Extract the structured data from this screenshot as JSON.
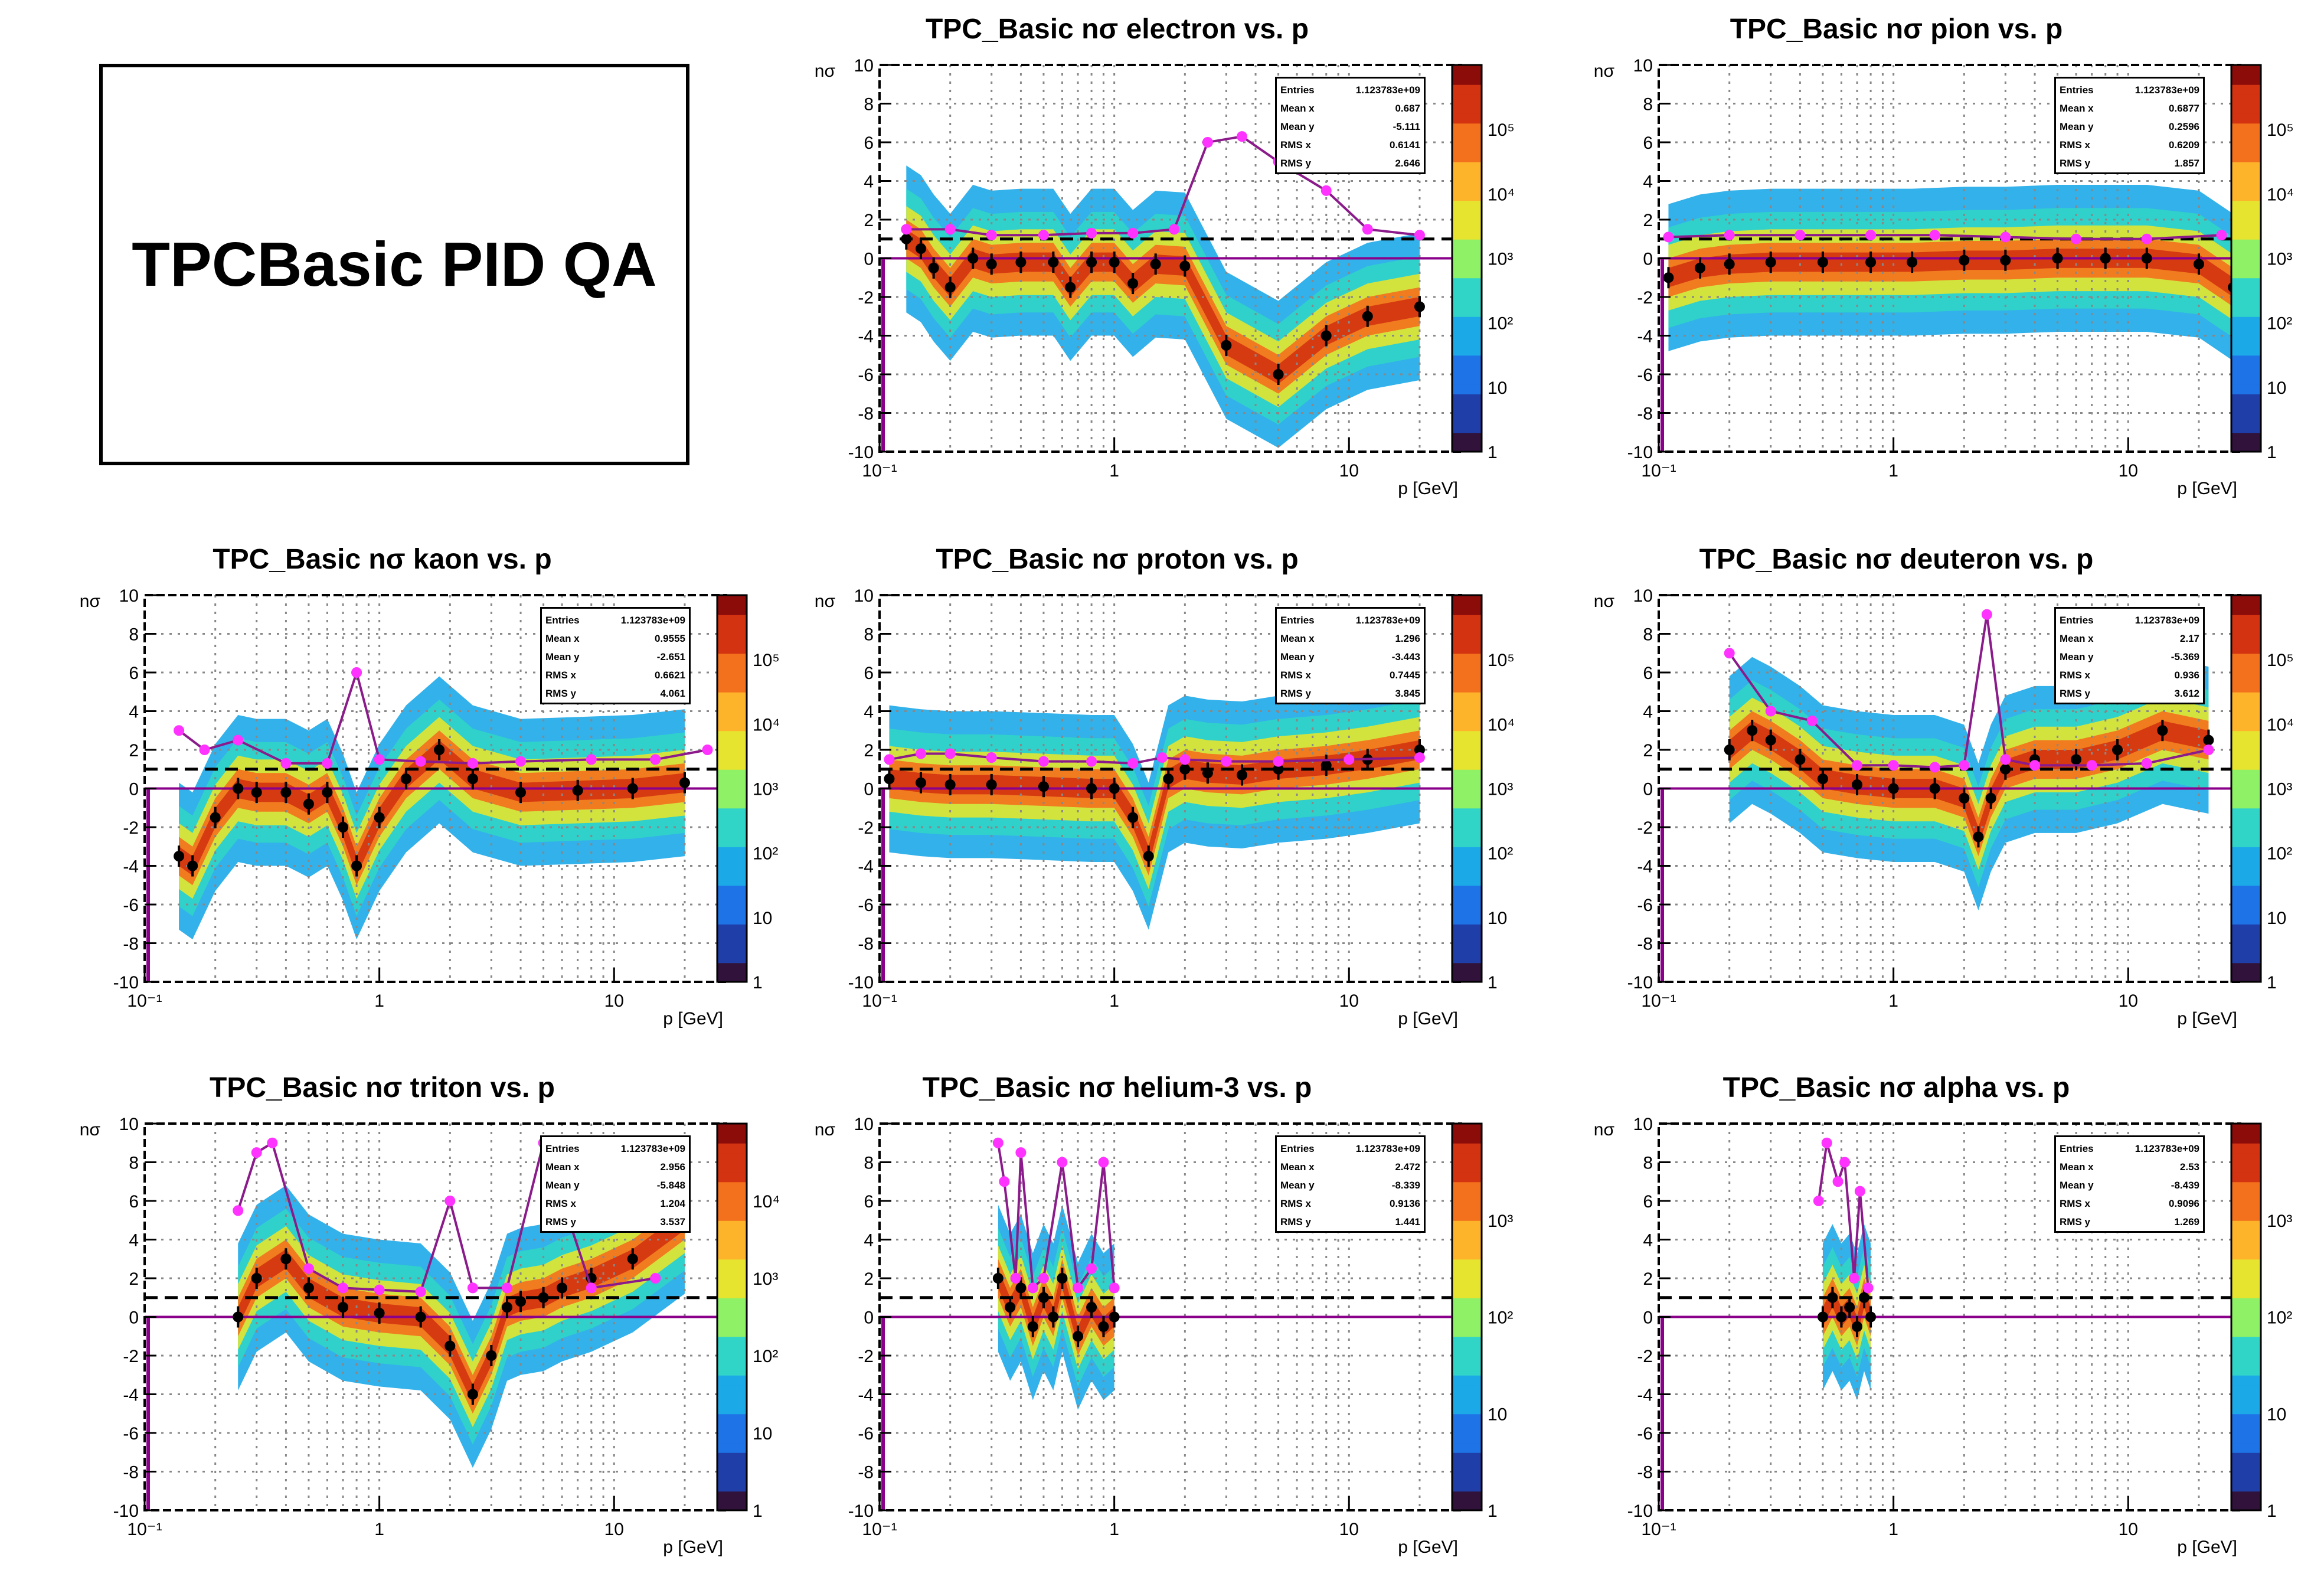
{
  "page_title": "TPCBasic PID QA",
  "colors": {
    "mean_marker": "#000000",
    "sigma_marker": "#ff33ff",
    "distribution_line": "#8b1a8b",
    "reference_dashed": "#000000",
    "zero_line": "#8b008b"
  },
  "chart_data": [
    {
      "type": "heatmap",
      "title": "TPC_Basic nσ electron vs. p",
      "species": "electron",
      "ylabel": "nσ",
      "xlabel": "p [GeV]",
      "xscale": "log",
      "xlim": [
        0.1,
        30
      ],
      "ylim": [
        -10,
        10
      ],
      "zscale": "log",
      "zlim": [
        1,
        1000000
      ],
      "zticks": [
        "1",
        "10",
        "10²",
        "10³",
        "10⁴",
        "10⁵"
      ],
      "xticks": [
        "10⁻¹",
        "1",
        "10"
      ],
      "yticks": [
        "-10",
        "-8",
        "-6",
        "-4",
        "-2",
        "0",
        "2",
        "4",
        "6",
        "8",
        "10"
      ],
      "stats": {
        "entries": "1.123783e+09",
        "mean_x": "0.687",
        "mean_y": "-5.111",
        "rms_x": "0.6141",
        "rms_y": "2.646"
      },
      "mean_profile": {
        "x": [
          0.13,
          0.15,
          0.17,
          0.2,
          0.25,
          0.3,
          0.4,
          0.55,
          0.65,
          0.8,
          1.0,
          1.2,
          1.5,
          2.0,
          3.0,
          5.0,
          8.0,
          12.0,
          20.0
        ],
        "y": [
          1.0,
          0.5,
          -0.5,
          -1.5,
          0.0,
          -0.3,
          -0.2,
          -0.2,
          -1.5,
          -0.2,
          -0.2,
          -1.3,
          -0.3,
          -0.4,
          -4.5,
          -6.0,
          -4.0,
          -3.0,
          -2.5
        ]
      },
      "sigma_profile": {
        "x": [
          0.13,
          0.2,
          0.3,
          0.5,
          0.8,
          1.2,
          1.8,
          2.5,
          3.5,
          5.0,
          8.0,
          12.0,
          20.0
        ],
        "y": [
          1.5,
          1.5,
          1.2,
          1.2,
          1.3,
          1.3,
          1.5,
          6.0,
          6.3,
          5.0,
          3.5,
          1.5,
          1.2
        ]
      },
      "reference_line_y": 1.0
    },
    {
      "type": "heatmap",
      "title": "TPC_Basic nσ pion vs. p",
      "species": "pion",
      "ylabel": "nσ",
      "xlabel": "p [GeV]",
      "xscale": "log",
      "xlim": [
        0.1,
        30
      ],
      "ylim": [
        -10,
        10
      ],
      "zscale": "log",
      "zlim": [
        1,
        1000000
      ],
      "zticks": [
        "1",
        "10",
        "10²",
        "10³",
        "10⁴",
        "10⁵"
      ],
      "xticks": [
        "10⁻¹",
        "1",
        "10"
      ],
      "yticks": [
        "-10",
        "-8",
        "-6",
        "-4",
        "-2",
        "0",
        "2",
        "4",
        "6",
        "8",
        "10"
      ],
      "stats": {
        "entries": "1.123783e+09",
        "mean_x": "0.6877",
        "mean_y": "0.2596",
        "rms_x": "0.6209",
        "rms_y": "1.857"
      },
      "mean_profile": {
        "x": [
          0.11,
          0.15,
          0.2,
          0.3,
          0.5,
          0.8,
          1.2,
          2.0,
          3.0,
          5.0,
          8.0,
          12.0,
          20.0,
          28.0
        ],
        "y": [
          -1.0,
          -0.5,
          -0.3,
          -0.2,
          -0.2,
          -0.2,
          -0.2,
          -0.1,
          -0.1,
          0.0,
          0.0,
          0.0,
          -0.3,
          -1.5
        ]
      },
      "sigma_profile": {
        "x": [
          0.11,
          0.2,
          0.4,
          0.8,
          1.5,
          3.0,
          6.0,
          12.0,
          25.0
        ],
        "y": [
          1.1,
          1.2,
          1.2,
          1.2,
          1.2,
          1.1,
          1.0,
          1.0,
          1.2
        ]
      },
      "reference_line_y": 1.0
    },
    {
      "type": "heatmap",
      "title": "TPC_Basic nσ kaon vs. p",
      "species": "kaon",
      "ylabel": "nσ",
      "xlabel": "p [GeV]",
      "xscale": "log",
      "xlim": [
        0.1,
        30
      ],
      "ylim": [
        -10,
        10
      ],
      "zscale": "log",
      "zlim": [
        1,
        1000000
      ],
      "zticks": [
        "1",
        "10",
        "10²",
        "10³",
        "10⁴",
        "10⁵"
      ],
      "xticks": [
        "10⁻¹",
        "1",
        "10"
      ],
      "yticks": [
        "-10",
        "-8",
        "-6",
        "-4",
        "-2",
        "0",
        "2",
        "4",
        "6",
        "8",
        "10"
      ],
      "stats": {
        "entries": "1.123783e+09",
        "mean_x": "0.9555",
        "mean_y": "-2.651",
        "rms_x": "0.6621",
        "rms_y": "4.061"
      },
      "mean_profile": {
        "x": [
          0.14,
          0.16,
          0.2,
          0.25,
          0.3,
          0.4,
          0.5,
          0.6,
          0.7,
          0.8,
          1.0,
          1.3,
          1.8,
          2.5,
          4.0,
          7.0,
          12.0,
          20.0
        ],
        "y": [
          -3.5,
          -4.0,
          -1.5,
          0.0,
          -0.2,
          -0.2,
          -0.8,
          -0.2,
          -2.0,
          -4.0,
          -1.5,
          0.5,
          2.0,
          0.5,
          -0.2,
          -0.1,
          0.0,
          0.3
        ]
      },
      "sigma_profile": {
        "x": [
          0.14,
          0.18,
          0.25,
          0.4,
          0.6,
          0.8,
          1.0,
          1.5,
          2.5,
          4.0,
          8.0,
          15.0,
          25.0
        ],
        "y": [
          3.0,
          2.0,
          2.5,
          1.3,
          1.3,
          6.0,
          1.5,
          1.4,
          1.3,
          1.4,
          1.5,
          1.5,
          2.0
        ]
      },
      "reference_line_y": 1.0
    },
    {
      "type": "heatmap",
      "title": "TPC_Basic nσ proton vs. p",
      "species": "proton",
      "ylabel": "nσ",
      "xlabel": "p [GeV]",
      "xscale": "log",
      "xlim": [
        0.1,
        30
      ],
      "ylim": [
        -10,
        10
      ],
      "zscale": "log",
      "zlim": [
        1,
        1000000
      ],
      "zticks": [
        "1",
        "10",
        "10²",
        "10³",
        "10⁴",
        "10⁵"
      ],
      "xticks": [
        "10⁻¹",
        "1",
        "10"
      ],
      "yticks": [
        "-10",
        "-8",
        "-6",
        "-4",
        "-2",
        "0",
        "2",
        "4",
        "6",
        "8",
        "10"
      ],
      "stats": {
        "entries": "1.123783e+09",
        "mean_x": "1.296",
        "mean_y": "-3.443",
        "rms_x": "0.7445",
        "rms_y": "3.845"
      },
      "mean_profile": {
        "x": [
          0.11,
          0.15,
          0.2,
          0.3,
          0.5,
          0.8,
          1.0,
          1.2,
          1.4,
          1.7,
          2.0,
          2.5,
          3.5,
          5.0,
          8.0,
          12.0,
          20.0
        ],
        "y": [
          0.5,
          0.3,
          0.2,
          0.2,
          0.1,
          0.0,
          0.0,
          -1.5,
          -3.5,
          0.5,
          1.0,
          0.8,
          0.7,
          1.0,
          1.2,
          1.5,
          2.0
        ]
      },
      "sigma_profile": {
        "x": [
          0.11,
          0.15,
          0.2,
          0.3,
          0.5,
          0.8,
          1.2,
          1.6,
          2.0,
          3.0,
          5.0,
          10.0,
          20.0
        ],
        "y": [
          1.5,
          1.8,
          1.8,
          1.6,
          1.4,
          1.4,
          1.3,
          1.6,
          1.5,
          1.4,
          1.4,
          1.5,
          1.6
        ]
      },
      "reference_line_y": 1.0
    },
    {
      "type": "heatmap",
      "title": "TPC_Basic nσ deuteron vs. p",
      "species": "deuteron",
      "ylabel": "nσ",
      "xlabel": "p [GeV]",
      "xscale": "log",
      "xlim": [
        0.1,
        30
      ],
      "ylim": [
        -10,
        10
      ],
      "zscale": "log",
      "zlim": [
        1,
        1000000
      ],
      "zticks": [
        "1",
        "10",
        "10²",
        "10³",
        "10⁴",
        "10⁵"
      ],
      "xticks": [
        "10⁻¹",
        "1",
        "10"
      ],
      "yticks": [
        "-10",
        "-8",
        "-6",
        "-4",
        "-2",
        "0",
        "2",
        "4",
        "6",
        "8",
        "10"
      ],
      "stats": {
        "entries": "1.123783e+09",
        "mean_x": "2.17",
        "mean_y": "-5.369",
        "rms_x": "0.936",
        "rms_y": "3.612"
      },
      "mean_profile": {
        "x": [
          0.2,
          0.25,
          0.3,
          0.4,
          0.5,
          0.7,
          1.0,
          1.5,
          2.0,
          2.3,
          2.6,
          3.0,
          4.0,
          6.0,
          9.0,
          14.0,
          22.0
        ],
        "y": [
          2.0,
          3.0,
          2.5,
          1.5,
          0.5,
          0.2,
          0.0,
          0.0,
          -0.5,
          -2.5,
          -0.5,
          1.0,
          1.5,
          1.5,
          2.0,
          3.0,
          2.5
        ]
      },
      "sigma_profile": {
        "x": [
          0.2,
          0.3,
          0.45,
          0.7,
          1.0,
          1.5,
          2.0,
          2.5,
          3.0,
          4.0,
          7.0,
          12.0,
          22.0
        ],
        "y": [
          7.0,
          4.0,
          3.5,
          1.2,
          1.2,
          1.1,
          1.2,
          9.0,
          1.5,
          1.2,
          1.2,
          1.3,
          2.0
        ]
      },
      "reference_line_y": 1.0
    },
    {
      "type": "heatmap",
      "title": "TPC_Basic nσ triton vs. p",
      "species": "triton",
      "ylabel": "nσ",
      "xlabel": "p [GeV]",
      "xscale": "log",
      "xlim": [
        0.1,
        30
      ],
      "ylim": [
        -10,
        10
      ],
      "zscale": "log",
      "zlim": [
        1,
        100000
      ],
      "zticks": [
        "1",
        "10",
        "10²",
        "10³",
        "10⁴"
      ],
      "xticks": [
        "10⁻¹",
        "1",
        "10"
      ],
      "yticks": [
        "-10",
        "-8",
        "-6",
        "-4",
        "-2",
        "0",
        "2",
        "4",
        "6",
        "8",
        "10"
      ],
      "stats": {
        "entries": "1.123783e+09",
        "mean_x": "2.956",
        "mean_y": "-5.848",
        "rms_x": "1.204",
        "rms_y": "3.537"
      },
      "mean_profile": {
        "x": [
          0.25,
          0.3,
          0.4,
          0.5,
          0.7,
          1.0,
          1.5,
          2.0,
          2.5,
          3.0,
          3.5,
          4.0,
          5.0,
          6.0,
          8.0,
          12.0,
          20.0
        ],
        "y": [
          0.0,
          2.0,
          3.0,
          1.5,
          0.5,
          0.2,
          0.0,
          -1.5,
          -4.0,
          -2.0,
          0.5,
          0.8,
          1.0,
          1.5,
          2.0,
          3.0,
          5.0
        ]
      },
      "sigma_profile": {
        "x": [
          0.25,
          0.3,
          0.35,
          0.5,
          0.7,
          1.0,
          1.5,
          2.0,
          2.5,
          3.5,
          5.0,
          8.0,
          15.0
        ],
        "y": [
          5.5,
          8.5,
          9.0,
          2.5,
          1.5,
          1.4,
          1.3,
          6.0,
          1.5,
          1.5,
          9.0,
          1.5,
          2.0
        ]
      },
      "reference_line_y": 1.0
    },
    {
      "type": "heatmap",
      "title": "TPC_Basic nσ helium-3 vs. p",
      "species": "helium-3",
      "ylabel": "nσ",
      "xlabel": "p [GeV]",
      "xscale": "log",
      "xlim": [
        0.1,
        30
      ],
      "ylim": [
        -10,
        10
      ],
      "zscale": "log",
      "zlim": [
        1,
        10000
      ],
      "zticks": [
        "1",
        "10",
        "10²",
        "10³"
      ],
      "xticks": [
        "10⁻¹",
        "1",
        "10"
      ],
      "yticks": [
        "-10",
        "-8",
        "-6",
        "-4",
        "-2",
        "0",
        "2",
        "4",
        "6",
        "8",
        "10"
      ],
      "stats": {
        "entries": "1.123783e+09",
        "mean_x": "2.472",
        "mean_y": "-8.339",
        "rms_x": "0.9136",
        "rms_y": "1.441"
      },
      "mean_profile": {
        "x": [
          0.32,
          0.36,
          0.4,
          0.45,
          0.5,
          0.55,
          0.6,
          0.7,
          0.8,
          0.9,
          1.0
        ],
        "y": [
          2.0,
          0.5,
          1.5,
          -0.5,
          1.0,
          0.0,
          2.0,
          -1.0,
          0.5,
          -0.5,
          0.0
        ]
      },
      "sigma_profile": {
        "x": [
          0.32,
          0.34,
          0.38,
          0.4,
          0.45,
          0.5,
          0.6,
          0.7,
          0.8,
          0.9,
          1.0
        ],
        "y": [
          9.0,
          7.0,
          2.0,
          8.5,
          1.5,
          2.0,
          8.0,
          1.5,
          2.5,
          8.0,
          1.5
        ]
      },
      "reference_line_y": 1.0
    },
    {
      "type": "heatmap",
      "title": "TPC_Basic nσ alpha vs. p",
      "species": "alpha",
      "ylabel": "nσ",
      "xlabel": "p [GeV]",
      "xscale": "log",
      "xlim": [
        0.1,
        30
      ],
      "ylim": [
        -10,
        10
      ],
      "zscale": "log",
      "zlim": [
        1,
        10000
      ],
      "zticks": [
        "1",
        "10",
        "10²",
        "10³"
      ],
      "xticks": [
        "10⁻¹",
        "1",
        "10"
      ],
      "yticks": [
        "-10",
        "-8",
        "-6",
        "-4",
        "-2",
        "0",
        "2",
        "4",
        "6",
        "8",
        "10"
      ],
      "stats": {
        "entries": "1.123783e+09",
        "mean_x": "2.53",
        "mean_y": "-8.439",
        "rms_x": "0.9096",
        "rms_y": "1.269"
      },
      "mean_profile": {
        "x": [
          0.5,
          0.55,
          0.6,
          0.65,
          0.7,
          0.75,
          0.8
        ],
        "y": [
          0.0,
          1.0,
          0.0,
          0.5,
          -0.5,
          1.0,
          0.0
        ]
      },
      "sigma_profile": {
        "x": [
          0.48,
          0.52,
          0.58,
          0.62,
          0.68,
          0.72,
          0.78
        ],
        "y": [
          6.0,
          9.0,
          7.0,
          8.0,
          2.0,
          6.5,
          1.5
        ]
      },
      "reference_line_y": 1.0
    }
  ],
  "stat_labels": {
    "entries": "Entries",
    "mean_x": "Mean x",
    "mean_y": "Mean y",
    "rms_x": "RMS x",
    "rms_y": "RMS y"
  }
}
